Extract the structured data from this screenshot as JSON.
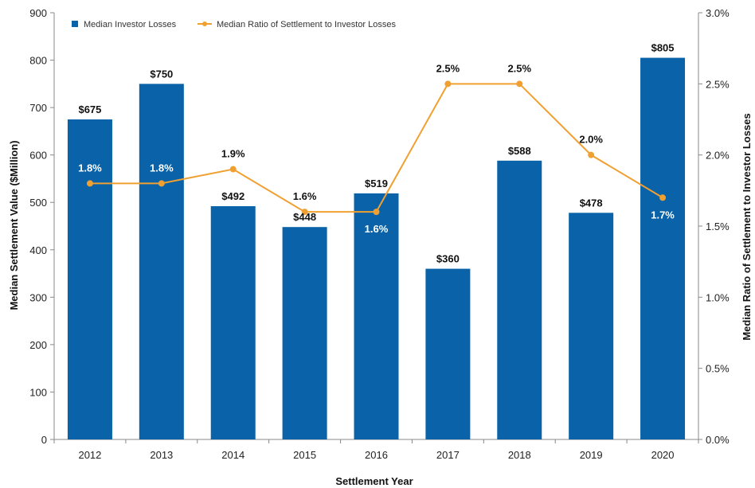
{
  "chart_data": {
    "type": "bar",
    "categories": [
      "2012",
      "2013",
      "2014",
      "2015",
      "2016",
      "2017",
      "2018",
      "2019",
      "2020"
    ],
    "xlabel": "Settlement Year",
    "ylabel": "Median Settlement Value ($Million)",
    "ylabel_right": "Median Ratio of Settlement to Investor Losses",
    "ylim": [
      0,
      900
    ],
    "ylim_right": [
      0,
      3.0
    ],
    "yticks": [
      "0",
      "100",
      "200",
      "300",
      "400",
      "500",
      "600",
      "700",
      "800",
      "900"
    ],
    "yticks_right": [
      "0.0%",
      "0.5%",
      "1.0%",
      "1.5%",
      "2.0%",
      "2.5%",
      "3.0%"
    ],
    "grid": false,
    "legend_position": "top-left",
    "series": [
      {
        "name": "Median Investor Losses",
        "type": "bar",
        "axis": "left",
        "color": "#0a63a8",
        "values": [
          675,
          750,
          492,
          448,
          519,
          360,
          588,
          478,
          805
        ],
        "labels": [
          "$675",
          "$750",
          "$492",
          "$448",
          "$519",
          "$360",
          "$588",
          "$478",
          "$805"
        ]
      },
      {
        "name": "Median Ratio of Settlement to Investor Losses",
        "type": "line",
        "axis": "right",
        "color": "#f0a030",
        "values": [
          1.8,
          1.8,
          1.9,
          1.6,
          1.6,
          2.5,
          2.5,
          2.0,
          1.7
        ],
        "labels": [
          "1.8%",
          "1.8%",
          "1.9%",
          "1.6%",
          "1.6%",
          "2.5%",
          "2.5%",
          "2.0%",
          "1.7%"
        ],
        "label_colors": [
          "#ffffff",
          "#ffffff",
          "#111111",
          "#111111",
          "#ffffff",
          "#111111",
          "#111111",
          "#111111",
          "#ffffff"
        ]
      }
    ]
  }
}
